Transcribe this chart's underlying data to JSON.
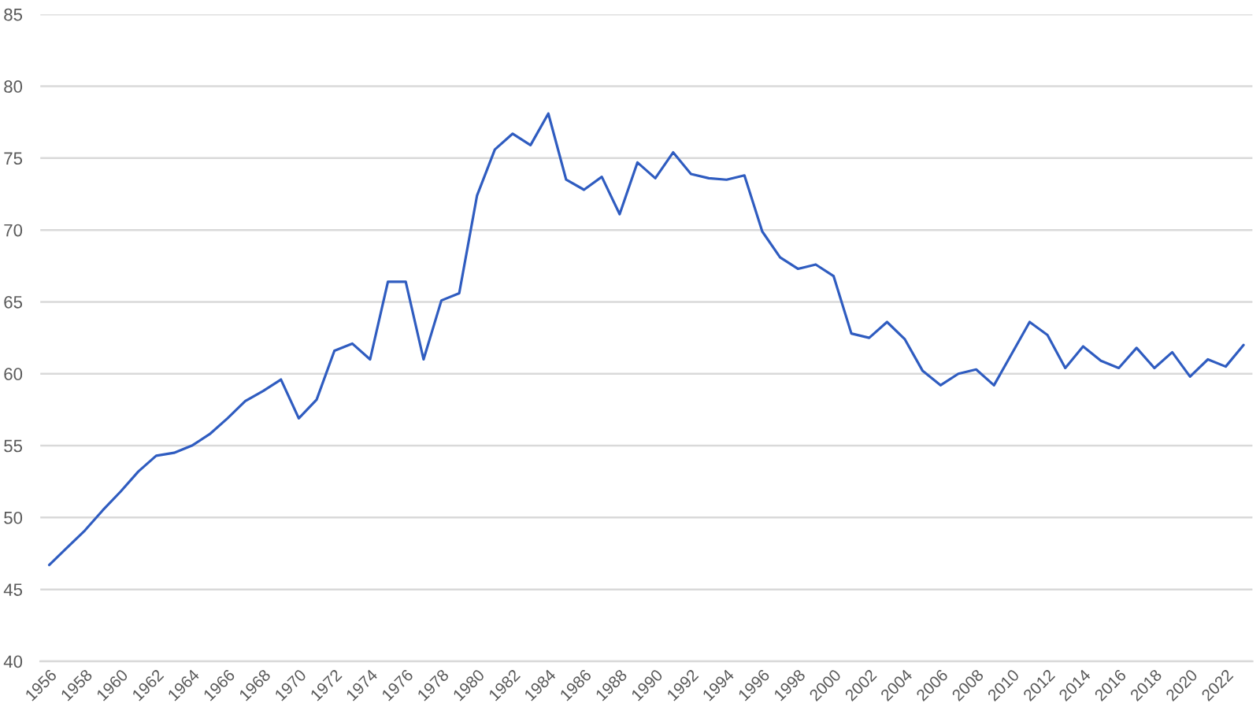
{
  "chart_data": {
    "type": "line",
    "categories": [
      "1956",
      null,
      "1958",
      null,
      "1960",
      null,
      "1962",
      null,
      "1964",
      null,
      "1966",
      null,
      "1968",
      null,
      "1970",
      null,
      "1972",
      null,
      "1974",
      null,
      "1976",
      null,
      "1978",
      null,
      "1980",
      null,
      "1982",
      null,
      "1984",
      null,
      "1986",
      null,
      "1988",
      null,
      "1990",
      null,
      "1992",
      null,
      "1994",
      null,
      "1996",
      null,
      "1998",
      null,
      "2000",
      null,
      "2002",
      null,
      "2004",
      null,
      "2006",
      null,
      "2008",
      null,
      "2010",
      null,
      "2012",
      null,
      "2014",
      null,
      "2016",
      null,
      "2018",
      null,
      "2020",
      null,
      "2022",
      null
    ],
    "values": [
      46.7,
      47.9,
      49.1,
      50.5,
      51.8,
      53.2,
      54.3,
      54.5,
      55.0,
      55.8,
      56.9,
      58.1,
      58.8,
      59.6,
      56.9,
      58.2,
      61.6,
      62.1,
      61.0,
      66.4,
      66.4,
      61.0,
      65.1,
      65.6,
      72.4,
      75.6,
      76.7,
      75.9,
      78.1,
      73.5,
      72.8,
      73.7,
      71.1,
      74.7,
      73.6,
      75.4,
      73.9,
      73.6,
      73.5,
      73.8,
      69.9,
      68.1,
      67.3,
      67.6,
      66.8,
      62.8,
      62.5,
      63.6,
      62.4,
      60.2,
      59.2,
      60.0,
      60.3,
      59.2,
      61.4,
      63.6,
      62.7,
      60.4,
      61.9,
      60.9,
      60.4,
      61.8,
      60.4,
      61.5,
      59.8,
      61.0,
      60.5,
      62.0
    ],
    "color": "#2f5cc0",
    "ylim": [
      40,
      85
    ],
    "yticks": [
      40,
      45,
      50,
      55,
      60,
      65,
      70,
      75,
      80,
      85
    ],
    "grid": "y"
  }
}
